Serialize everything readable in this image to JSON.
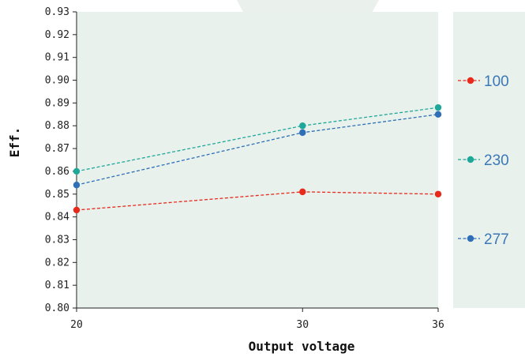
{
  "chart_data": {
    "type": "line",
    "xlabel": "Output voltage",
    "ylabel": "Eff.",
    "x": [
      20,
      30,
      36
    ],
    "x_tick_labels": [
      "20",
      "30",
      "36"
    ],
    "ylim": [
      0.8,
      0.93
    ],
    "y_ticks": [
      "0.80",
      "0.81",
      "0.82",
      "0.83",
      "0.84",
      "0.85",
      "0.86",
      "0.87",
      "0.88",
      "0.89",
      "0.90",
      "0.91",
      "0.92",
      "0.93"
    ],
    "grid": false,
    "legend_position": "right",
    "series": [
      {
        "name": "100",
        "values": [
          0.843,
          0.851,
          0.85
        ],
        "color": "#e8291c"
      },
      {
        "name": "230",
        "values": [
          0.86,
          0.88,
          0.888
        ],
        "color": "#1fa89a"
      },
      {
        "name": "277",
        "values": [
          0.854,
          0.877,
          0.885
        ],
        "color": "#2e6fb7"
      }
    ],
    "plot_background": "#e8f1ec",
    "legend_text_color": "#3b78b8"
  }
}
